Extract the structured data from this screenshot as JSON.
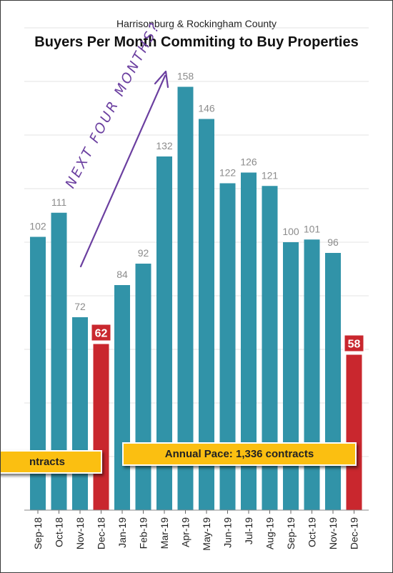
{
  "header": {
    "subtitle": "Harrisonburg & Rockingham County",
    "title": "Buyers Per Month Commiting to Buy Properties"
  },
  "annotation": {
    "text": "NEXT FOUR MONTHS?",
    "color": "#6b3fa0"
  },
  "pace": {
    "left_label": "ntracts",
    "right_label": "Annual Pace: 1,336 contracts",
    "color": "#fbbf11"
  },
  "colors": {
    "bar": "#3193a8",
    "bar_highlight": "#c9272e",
    "value_label": "#8c8c8c",
    "grid": "#e3e3e3"
  },
  "chart_data": {
    "type": "bar",
    "title": "Buyers Per Month Commiting to Buy Properties",
    "subtitle": "Harrisonburg & Rockingham County",
    "categories": [
      "Sep-18",
      "Oct-18",
      "Nov-18",
      "Dec-18",
      "Jan-19",
      "Feb-19",
      "Mar-19",
      "Apr-19",
      "May-19",
      "Jun-19",
      "Jul-19",
      "Aug-19",
      "Sep-19",
      "Oct-19",
      "Nov-19",
      "Dec-19"
    ],
    "values": [
      102,
      111,
      72,
      62,
      84,
      92,
      132,
      158,
      146,
      122,
      126,
      121,
      100,
      101,
      96,
      58
    ],
    "highlighted": [
      "Dec-18",
      "Dec-19"
    ],
    "ylim": [
      0,
      180
    ],
    "grid": true
  }
}
